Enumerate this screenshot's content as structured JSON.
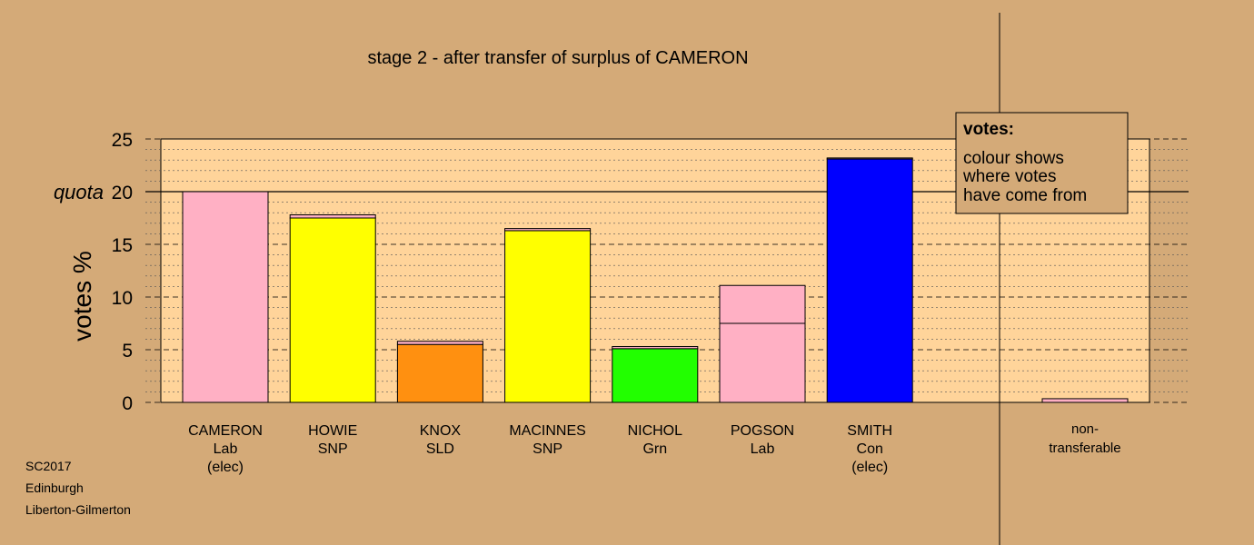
{
  "chart_data": {
    "type": "bar",
    "title": "stage 2 - after transfer of surplus of CAMERON",
    "ylabel": "votes %",
    "ylim": [
      0,
      25
    ],
    "yticks": [
      "0",
      "5",
      "10",
      "15",
      "20",
      "25"
    ],
    "quota": {
      "label": "quota",
      "value": 20
    },
    "grid": true,
    "colors": {
      "Lab": "#ffb0c4",
      "SNP": "#ffff00",
      "SLD": "#ff9010",
      "Grn": "#22ff00",
      "Con": "#0000ff",
      "non": "#ffb0c4",
      "plot_bg": "#ffd49a",
      "page_bg": "#d4aa78"
    },
    "candidates": [
      {
        "name": "CAMERON",
        "party": "Lab",
        "note": "(elec)",
        "segments": [
          {
            "from": "Lab",
            "value": 20.0
          }
        ]
      },
      {
        "name": "HOWIE",
        "party": "SNP",
        "note": "",
        "segments": [
          {
            "from": "SNP",
            "value": 17.5
          },
          {
            "from": "Lab",
            "value": 0.3
          }
        ]
      },
      {
        "name": "KNOX",
        "party": "SLD",
        "note": "",
        "segments": [
          {
            "from": "SLD",
            "value": 5.5
          },
          {
            "from": "Lab",
            "value": 0.3
          }
        ]
      },
      {
        "name": "MACINNES",
        "party": "SNP",
        "note": "",
        "segments": [
          {
            "from": "SNP",
            "value": 16.3
          },
          {
            "from": "Lab",
            "value": 0.2
          }
        ]
      },
      {
        "name": "NICHOL",
        "party": "Grn",
        "note": "",
        "segments": [
          {
            "from": "Grn",
            "value": 5.1
          },
          {
            "from": "Lab",
            "value": 0.2
          }
        ]
      },
      {
        "name": "POGSON",
        "party": "Lab",
        "note": "",
        "segments": [
          {
            "from": "Lab",
            "value": 7.5
          },
          {
            "from": "Lab",
            "value": 3.6
          }
        ]
      },
      {
        "name": "SMITH",
        "party": "Con",
        "note": "(elec)",
        "segments": [
          {
            "from": "Con",
            "value": 23.1
          },
          {
            "from": "Lab",
            "value": 0.1
          }
        ]
      }
    ],
    "nontransferable": {
      "label_line1": "non-",
      "label_line2": "transferable",
      "value": 0.35
    },
    "legend": {
      "heading": "votes:",
      "lines": [
        "colour shows",
        "where votes",
        "have come from"
      ],
      "placement": "top-right"
    },
    "footer": [
      "SC2017",
      "Edinburgh",
      "Liberton-Gilmerton"
    ]
  }
}
